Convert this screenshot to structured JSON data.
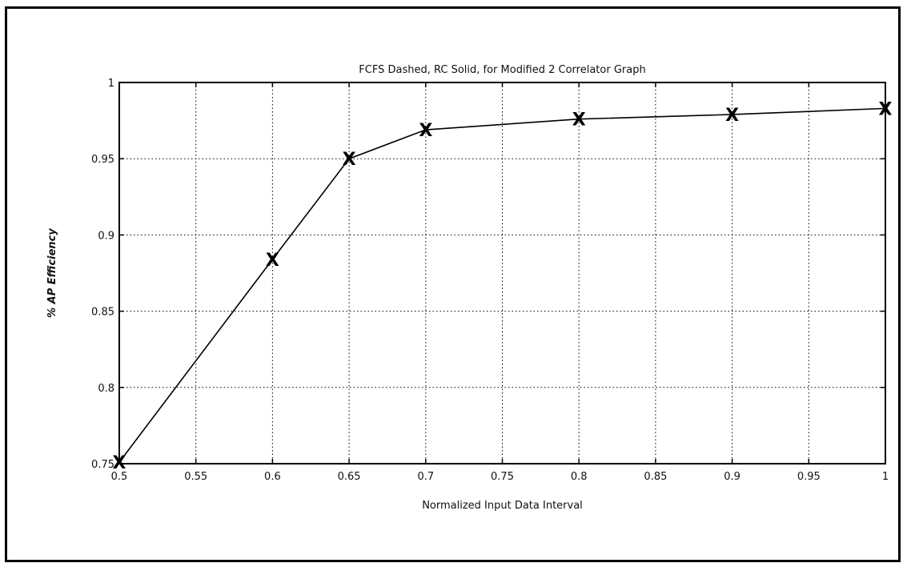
{
  "chart_data": {
    "type": "line",
    "title": "FCFS Dashed, RC Solid, for Modified 2 Correlator Graph",
    "xlabel": "Normalized Input Data Interval",
    "ylabel": "% AP Efficiency",
    "xlim": [
      0.5,
      1
    ],
    "ylim": [
      0.75,
      1
    ],
    "xticks": [
      0.5,
      0.55,
      0.6,
      0.65,
      0.7,
      0.75,
      0.8,
      0.85,
      0.9,
      0.95,
      1
    ],
    "xtick_labels": [
      "0.5",
      "0.55",
      "0.6",
      "0.65",
      "0.7",
      "0.75",
      "0.8",
      "0.85",
      "0.9",
      "0.95",
      "1"
    ],
    "yticks": [
      0.75,
      0.8,
      0.85,
      0.9,
      0.95,
      1
    ],
    "ytick_labels": [
      "0.75",
      "0.8",
      "0.85",
      "0.9",
      "0.95",
      "1"
    ],
    "grid": true,
    "marker_symbol": "X",
    "series": [
      {
        "line_style": "solid",
        "color": "#000000",
        "x": [
          0.5,
          0.6,
          0.65,
          0.7,
          0.8,
          0.9,
          1.0
        ],
        "y": [
          0.751,
          0.884,
          0.95,
          0.969,
          0.976,
          0.979,
          0.983
        ]
      }
    ]
  }
}
